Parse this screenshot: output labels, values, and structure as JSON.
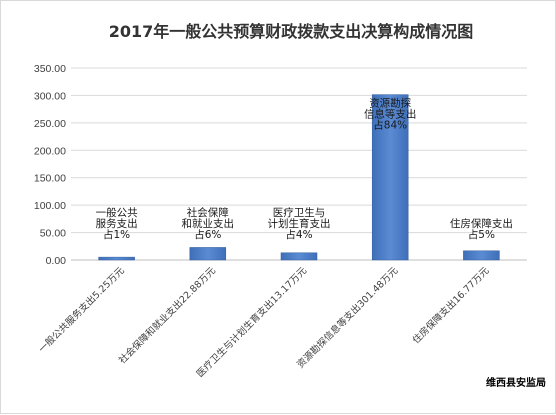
{
  "chart_data": {
    "type": "bar",
    "title": "2017年一般公共预算财政拨款支出决算构成情况图",
    "categories": [
      "一般公共服务支出5.25万元",
      "社会保障和就业支出22.88万元",
      "医疗卫生与计划生育支出13.17万元",
      "资源勘探信息等支出301.48万元",
      "住房保障支出16.77万元"
    ],
    "values": [
      5.25,
      22.88,
      13.17,
      301.48,
      16.77
    ],
    "annotations": [
      [
        "一般公共",
        "服务支出",
        "占1%"
      ],
      [
        "社会保障",
        "和就业支出",
        "占6%"
      ],
      [
        "医疗卫生与",
        "计划生育支出",
        "占4%"
      ],
      [
        "资源勘探",
        "信息等支出",
        "占84%"
      ],
      [
        "住房保障支出",
        "占5%"
      ]
    ],
    "y_ticks": [
      "0.00",
      "50.00",
      "100.00",
      "150.00",
      "200.00",
      "250.00",
      "300.00",
      "350.00"
    ],
    "ylim": [
      0,
      350
    ],
    "grid": true,
    "bar_color": "#4a7bc4",
    "source": "维西县安监局"
  }
}
